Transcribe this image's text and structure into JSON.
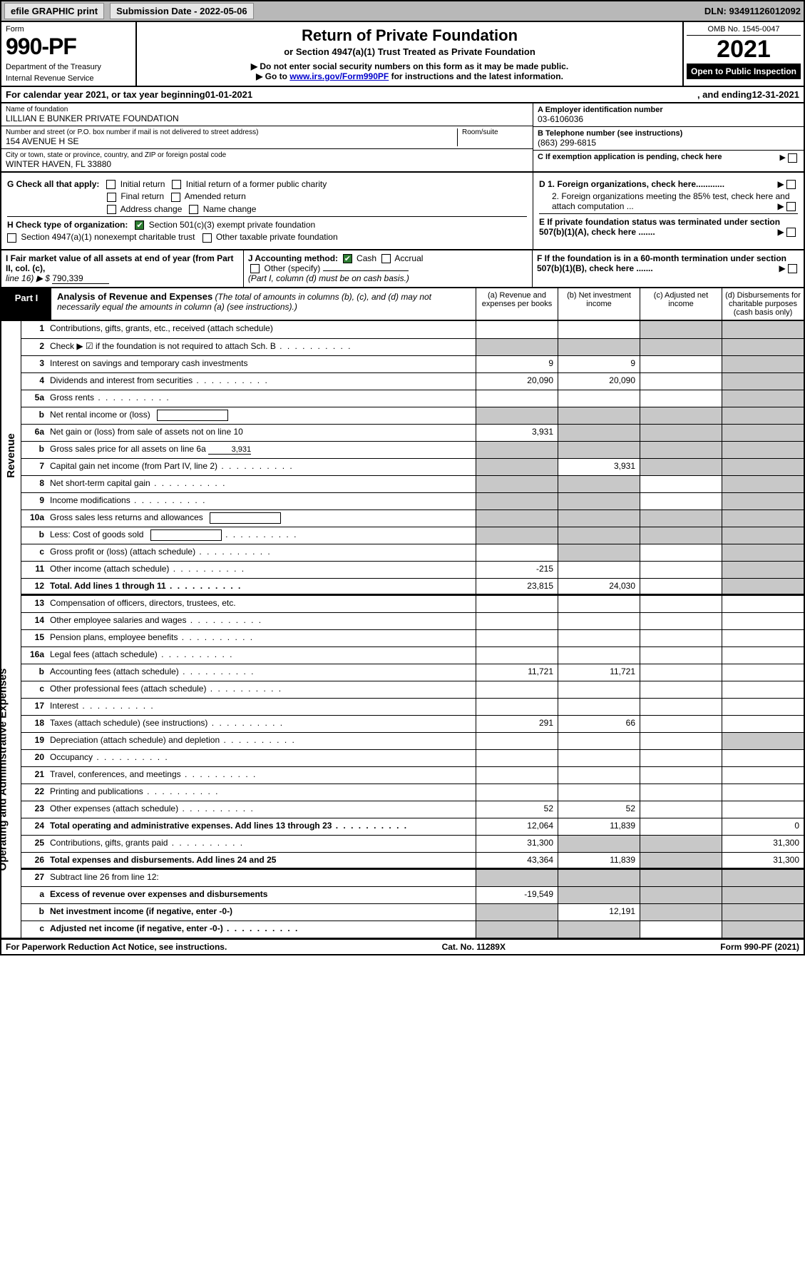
{
  "colors": {
    "black": "#000000",
    "white": "#ffffff",
    "header_gray": "#b8b8b8",
    "button_gray": "#e6e6e6",
    "shade_gray": "#c8c8c8",
    "link_blue": "#0000cc",
    "check_green": "#2e7d32"
  },
  "top_bar": {
    "efile": "efile GRAPHIC print",
    "submission": "Submission Date - 2022-05-06",
    "dln": "DLN: 93491126012092"
  },
  "header": {
    "form_label": "Form",
    "form_number": "990-PF",
    "dept": "Department of the Treasury",
    "irs": "Internal Revenue Service",
    "title": "Return of Private Foundation",
    "subtitle": "or Section 4947(a)(1) Trust Treated as Private Foundation",
    "instr1": "▶ Do not enter social security numbers on this form as it may be made public.",
    "instr2_pre": "▶ Go to ",
    "instr2_link": "www.irs.gov/Form990PF",
    "instr2_post": " for instructions and the latest information.",
    "omb": "OMB No. 1545-0047",
    "year": "2021",
    "open": "Open to Public Inspection"
  },
  "cal_year": {
    "pre": "For calendar year 2021, or tax year beginning ",
    "begin": "01-01-2021",
    "mid": ", and ending ",
    "end": "12-31-2021"
  },
  "entity": {
    "name_label": "Name of foundation",
    "name": "LILLIAN E BUNKER PRIVATE FOUNDATION",
    "addr_label": "Number and street (or P.O. box number if mail is not delivered to street address)",
    "room_label": "Room/suite",
    "addr": "154 AVENUE H SE",
    "city_label": "City or town, state or province, country, and ZIP or foreign postal code",
    "city": "WINTER HAVEN, FL  33880",
    "ein_label": "A Employer identification number",
    "ein": "03-6106036",
    "tel_label": "B Telephone number (see instructions)",
    "tel": "(863) 299-6815",
    "c_label": "C If exemption application is pending, check here"
  },
  "checks": {
    "g_label": "G Check all that apply:",
    "g_opts": [
      "Initial return",
      "Initial return of a former public charity",
      "Final return",
      "Amended return",
      "Address change",
      "Name change"
    ],
    "h_label": "H Check type of organization:",
    "h_501": "Section 501(c)(3) exempt private foundation",
    "h_4947": "Section 4947(a)(1) nonexempt charitable trust",
    "h_other": "Other taxable private foundation",
    "d1": "D 1. Foreign organizations, check here............",
    "d2": "2. Foreign organizations meeting the 85% test, check here and attach computation ...",
    "e": "E  If private foundation status was terminated under section 507(b)(1)(A), check here .......",
    "f": "F  If the foundation is in a 60-month termination under section 507(b)(1)(B), check here ......."
  },
  "fmv": {
    "i_label": "I Fair market value of all assets at end of year (from Part II, col. (c),",
    "i_line": "line 16) ▶ $",
    "i_val": "790,339",
    "j_label": "J Accounting method:",
    "j_cash": "Cash",
    "j_accrual": "Accrual",
    "j_other": "Other (specify)",
    "j_note": "(Part I, column (d) must be on cash basis.)"
  },
  "part1": {
    "label": "Part I",
    "title": "Analysis of Revenue and Expenses",
    "note": "(The total of amounts in columns (b), (c), and (d) may not necessarily equal the amounts in column (a) (see instructions).)",
    "col_a": "(a)   Revenue and expenses per books",
    "col_b": "(b)   Net investment income",
    "col_c": "(c)   Adjusted net income",
    "col_d": "(d)   Disbursements for charitable purposes (cash basis only)"
  },
  "side_labels": {
    "revenue": "Revenue",
    "expenses": "Operating and Administrative Expenses"
  },
  "rows": [
    {
      "ln": "1",
      "desc": "Contributions, gifts, grants, etc., received (attach schedule)",
      "a": "",
      "b": "",
      "c": "",
      "d": "",
      "shade": [
        "c",
        "d"
      ]
    },
    {
      "ln": "2",
      "desc": "Check ▶ ☑ if the foundation is not required to attach Sch. B",
      "a": "",
      "b": "",
      "c": "",
      "d": "",
      "shade": [
        "a",
        "b",
        "c",
        "d"
      ],
      "dots": true,
      "bold_not": true
    },
    {
      "ln": "3",
      "desc": "Interest on savings and temporary cash investments",
      "a": "9",
      "b": "9",
      "c": "",
      "d": "",
      "shade": [
        "d"
      ]
    },
    {
      "ln": "4",
      "desc": "Dividends and interest from securities",
      "a": "20,090",
      "b": "20,090",
      "c": "",
      "d": "",
      "shade": [
        "d"
      ],
      "dots": true
    },
    {
      "ln": "5a",
      "desc": "Gross rents",
      "a": "",
      "b": "",
      "c": "",
      "d": "",
      "shade": [
        "d"
      ],
      "dots": true
    },
    {
      "ln": "b",
      "desc": "Net rental income or (loss)",
      "a": "",
      "b": "",
      "c": "",
      "d": "",
      "shade": [
        "a",
        "b",
        "c",
        "d"
      ],
      "inline": true
    },
    {
      "ln": "6a",
      "desc": "Net gain or (loss) from sale of assets not on line 10",
      "a": "3,931",
      "b": "",
      "c": "",
      "d": "",
      "shade": [
        "b",
        "c",
        "d"
      ]
    },
    {
      "ln": "b",
      "desc": "Gross sales price for all assets on line 6a",
      "a": "",
      "b": "",
      "c": "",
      "d": "",
      "shade": [
        "a",
        "b",
        "c",
        "d"
      ],
      "inline_val": "3,931"
    },
    {
      "ln": "7",
      "desc": "Capital gain net income (from Part IV, line 2)",
      "a": "",
      "b": "3,931",
      "c": "",
      "d": "",
      "shade": [
        "a",
        "c",
        "d"
      ],
      "dots": true
    },
    {
      "ln": "8",
      "desc": "Net short-term capital gain",
      "a": "",
      "b": "",
      "c": "",
      "d": "",
      "shade": [
        "a",
        "b",
        "d"
      ],
      "dots": true
    },
    {
      "ln": "9",
      "desc": "Income modifications",
      "a": "",
      "b": "",
      "c": "",
      "d": "",
      "shade": [
        "a",
        "b",
        "d"
      ],
      "dots": true
    },
    {
      "ln": "10a",
      "desc": "Gross sales less returns and allowances",
      "a": "",
      "b": "",
      "c": "",
      "d": "",
      "shade": [
        "a",
        "b",
        "c",
        "d"
      ],
      "inline": true
    },
    {
      "ln": "b",
      "desc": "Less: Cost of goods sold",
      "a": "",
      "b": "",
      "c": "",
      "d": "",
      "shade": [
        "a",
        "b",
        "c",
        "d"
      ],
      "inline": true,
      "dots": true
    },
    {
      "ln": "c",
      "desc": "Gross profit or (loss) (attach schedule)",
      "a": "",
      "b": "",
      "c": "",
      "d": "",
      "shade": [
        "b",
        "d"
      ],
      "dots": true
    },
    {
      "ln": "11",
      "desc": "Other income (attach schedule)",
      "a": "-215",
      "b": "",
      "c": "",
      "d": "",
      "shade": [
        "d"
      ],
      "dots": true
    },
    {
      "ln": "12",
      "desc": "Total. Add lines 1 through 11",
      "a": "23,815",
      "b": "24,030",
      "c": "",
      "d": "",
      "shade": [
        "d"
      ],
      "dots": true,
      "bold": true
    },
    {
      "ln": "13",
      "desc": "Compensation of officers, directors, trustees, etc.",
      "a": "",
      "b": "",
      "c": "",
      "d": ""
    },
    {
      "ln": "14",
      "desc": "Other employee salaries and wages",
      "a": "",
      "b": "",
      "c": "",
      "d": "",
      "dots": true
    },
    {
      "ln": "15",
      "desc": "Pension plans, employee benefits",
      "a": "",
      "b": "",
      "c": "",
      "d": "",
      "dots": true
    },
    {
      "ln": "16a",
      "desc": "Legal fees (attach schedule)",
      "a": "",
      "b": "",
      "c": "",
      "d": "",
      "dots": true
    },
    {
      "ln": "b",
      "desc": "Accounting fees (attach schedule)",
      "a": "11,721",
      "b": "11,721",
      "c": "",
      "d": "",
      "dots": true
    },
    {
      "ln": "c",
      "desc": "Other professional fees (attach schedule)",
      "a": "",
      "b": "",
      "c": "",
      "d": "",
      "dots": true
    },
    {
      "ln": "17",
      "desc": "Interest",
      "a": "",
      "b": "",
      "c": "",
      "d": "",
      "dots": true
    },
    {
      "ln": "18",
      "desc": "Taxes (attach schedule) (see instructions)",
      "a": "291",
      "b": "66",
      "c": "",
      "d": "",
      "dots": true
    },
    {
      "ln": "19",
      "desc": "Depreciation (attach schedule) and depletion",
      "a": "",
      "b": "",
      "c": "",
      "d": "",
      "shade": [
        "d"
      ],
      "dots": true
    },
    {
      "ln": "20",
      "desc": "Occupancy",
      "a": "",
      "b": "",
      "c": "",
      "d": "",
      "dots": true
    },
    {
      "ln": "21",
      "desc": "Travel, conferences, and meetings",
      "a": "",
      "b": "",
      "c": "",
      "d": "",
      "dots": true
    },
    {
      "ln": "22",
      "desc": "Printing and publications",
      "a": "",
      "b": "",
      "c": "",
      "d": "",
      "dots": true
    },
    {
      "ln": "23",
      "desc": "Other expenses (attach schedule)",
      "a": "52",
      "b": "52",
      "c": "",
      "d": "",
      "dots": true
    },
    {
      "ln": "24",
      "desc": "Total operating and administrative expenses. Add lines 13 through 23",
      "a": "12,064",
      "b": "11,839",
      "c": "",
      "d": "0",
      "dots": true,
      "bold": true
    },
    {
      "ln": "25",
      "desc": "Contributions, gifts, grants paid",
      "a": "31,300",
      "b": "",
      "c": "",
      "d": "31,300",
      "shade": [
        "b",
        "c"
      ],
      "dots": true
    },
    {
      "ln": "26",
      "desc": "Total expenses and disbursements. Add lines 24 and 25",
      "a": "43,364",
      "b": "11,839",
      "c": "",
      "d": "31,300",
      "shade": [
        "c"
      ],
      "bold": true
    },
    {
      "ln": "27",
      "desc": "Subtract line 26 from line 12:",
      "a": "",
      "b": "",
      "c": "",
      "d": "",
      "shade": [
        "a",
        "b",
        "c",
        "d"
      ]
    },
    {
      "ln": "a",
      "desc": "Excess of revenue over expenses and disbursements",
      "a": "-19,549",
      "b": "",
      "c": "",
      "d": "",
      "shade": [
        "b",
        "c",
        "d"
      ],
      "bold": true
    },
    {
      "ln": "b",
      "desc": "Net investment income (if negative, enter -0-)",
      "a": "",
      "b": "12,191",
      "c": "",
      "d": "",
      "shade": [
        "a",
        "c",
        "d"
      ],
      "bold": true
    },
    {
      "ln": "c",
      "desc": "Adjusted net income (if negative, enter -0-)",
      "a": "",
      "b": "",
      "c": "",
      "d": "",
      "shade": [
        "a",
        "b",
        "d"
      ],
      "bold": true,
      "dots": true
    }
  ],
  "footer": {
    "left": "For Paperwork Reduction Act Notice, see instructions.",
    "center": "Cat. No. 11289X",
    "right": "Form 990-PF (2021)"
  }
}
